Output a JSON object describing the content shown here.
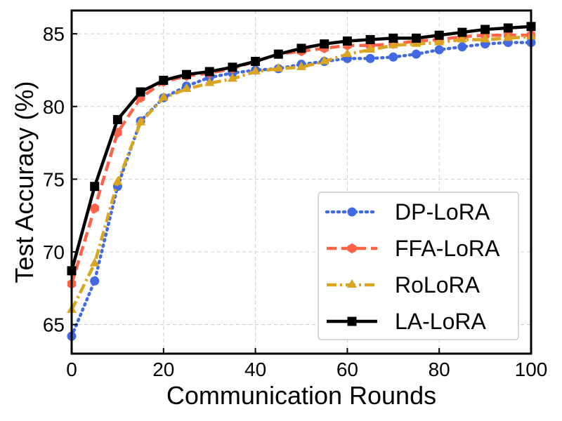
{
  "chart_data": {
    "type": "line",
    "xlabel": "Communication Rounds",
    "ylabel": "Test Accuracy (%)",
    "xlim": [
      0,
      100
    ],
    "ylim": [
      63,
      86.6
    ],
    "xticks": [
      0,
      20,
      40,
      60,
      80,
      100
    ],
    "yticks": [
      65,
      70,
      75,
      80,
      85
    ],
    "grid": true,
    "legend_position": "lower-right",
    "x": [
      0,
      5,
      10,
      15,
      20,
      25,
      30,
      35,
      40,
      45,
      50,
      55,
      60,
      65,
      70,
      75,
      80,
      85,
      90,
      95,
      100
    ],
    "series": [
      {
        "name": "DP-LoRA",
        "color": "#4169E1",
        "linestyle": "dotted",
        "marker": "circle",
        "values": [
          64.2,
          68.0,
          74.5,
          79.0,
          80.6,
          81.4,
          82.0,
          82.3,
          82.5,
          82.6,
          82.9,
          83.1,
          83.3,
          83.3,
          83.4,
          83.6,
          83.9,
          84.1,
          84.3,
          84.4,
          84.4
        ]
      },
      {
        "name": "FFA-LoRA",
        "color": "#FF6347",
        "linestyle": "dashed",
        "marker": "hexagon",
        "values": [
          67.8,
          73.0,
          78.2,
          80.6,
          81.7,
          82.1,
          82.3,
          82.6,
          83.1,
          83.6,
          83.8,
          84.0,
          84.2,
          84.2,
          84.3,
          84.5,
          84.6,
          84.8,
          84.9,
          84.9,
          84.9
        ]
      },
      {
        "name": "RoLoRA",
        "color": "#DAA520",
        "linestyle": "dashdot",
        "marker": "triangle",
        "values": [
          66.0,
          69.2,
          74.8,
          78.9,
          80.6,
          81.2,
          81.6,
          81.9,
          82.4,
          82.6,
          82.7,
          83.1,
          83.6,
          83.9,
          84.2,
          84.3,
          84.4,
          84.6,
          84.6,
          84.7,
          84.8
        ]
      },
      {
        "name": "LA-LoRA",
        "color": "#000000",
        "linestyle": "solid",
        "marker": "square",
        "values": [
          68.7,
          74.5,
          79.1,
          81.0,
          81.8,
          82.2,
          82.4,
          82.7,
          83.1,
          83.6,
          84.0,
          84.3,
          84.5,
          84.6,
          84.7,
          84.7,
          84.9,
          85.1,
          85.3,
          85.4,
          85.5
        ]
      }
    ]
  }
}
